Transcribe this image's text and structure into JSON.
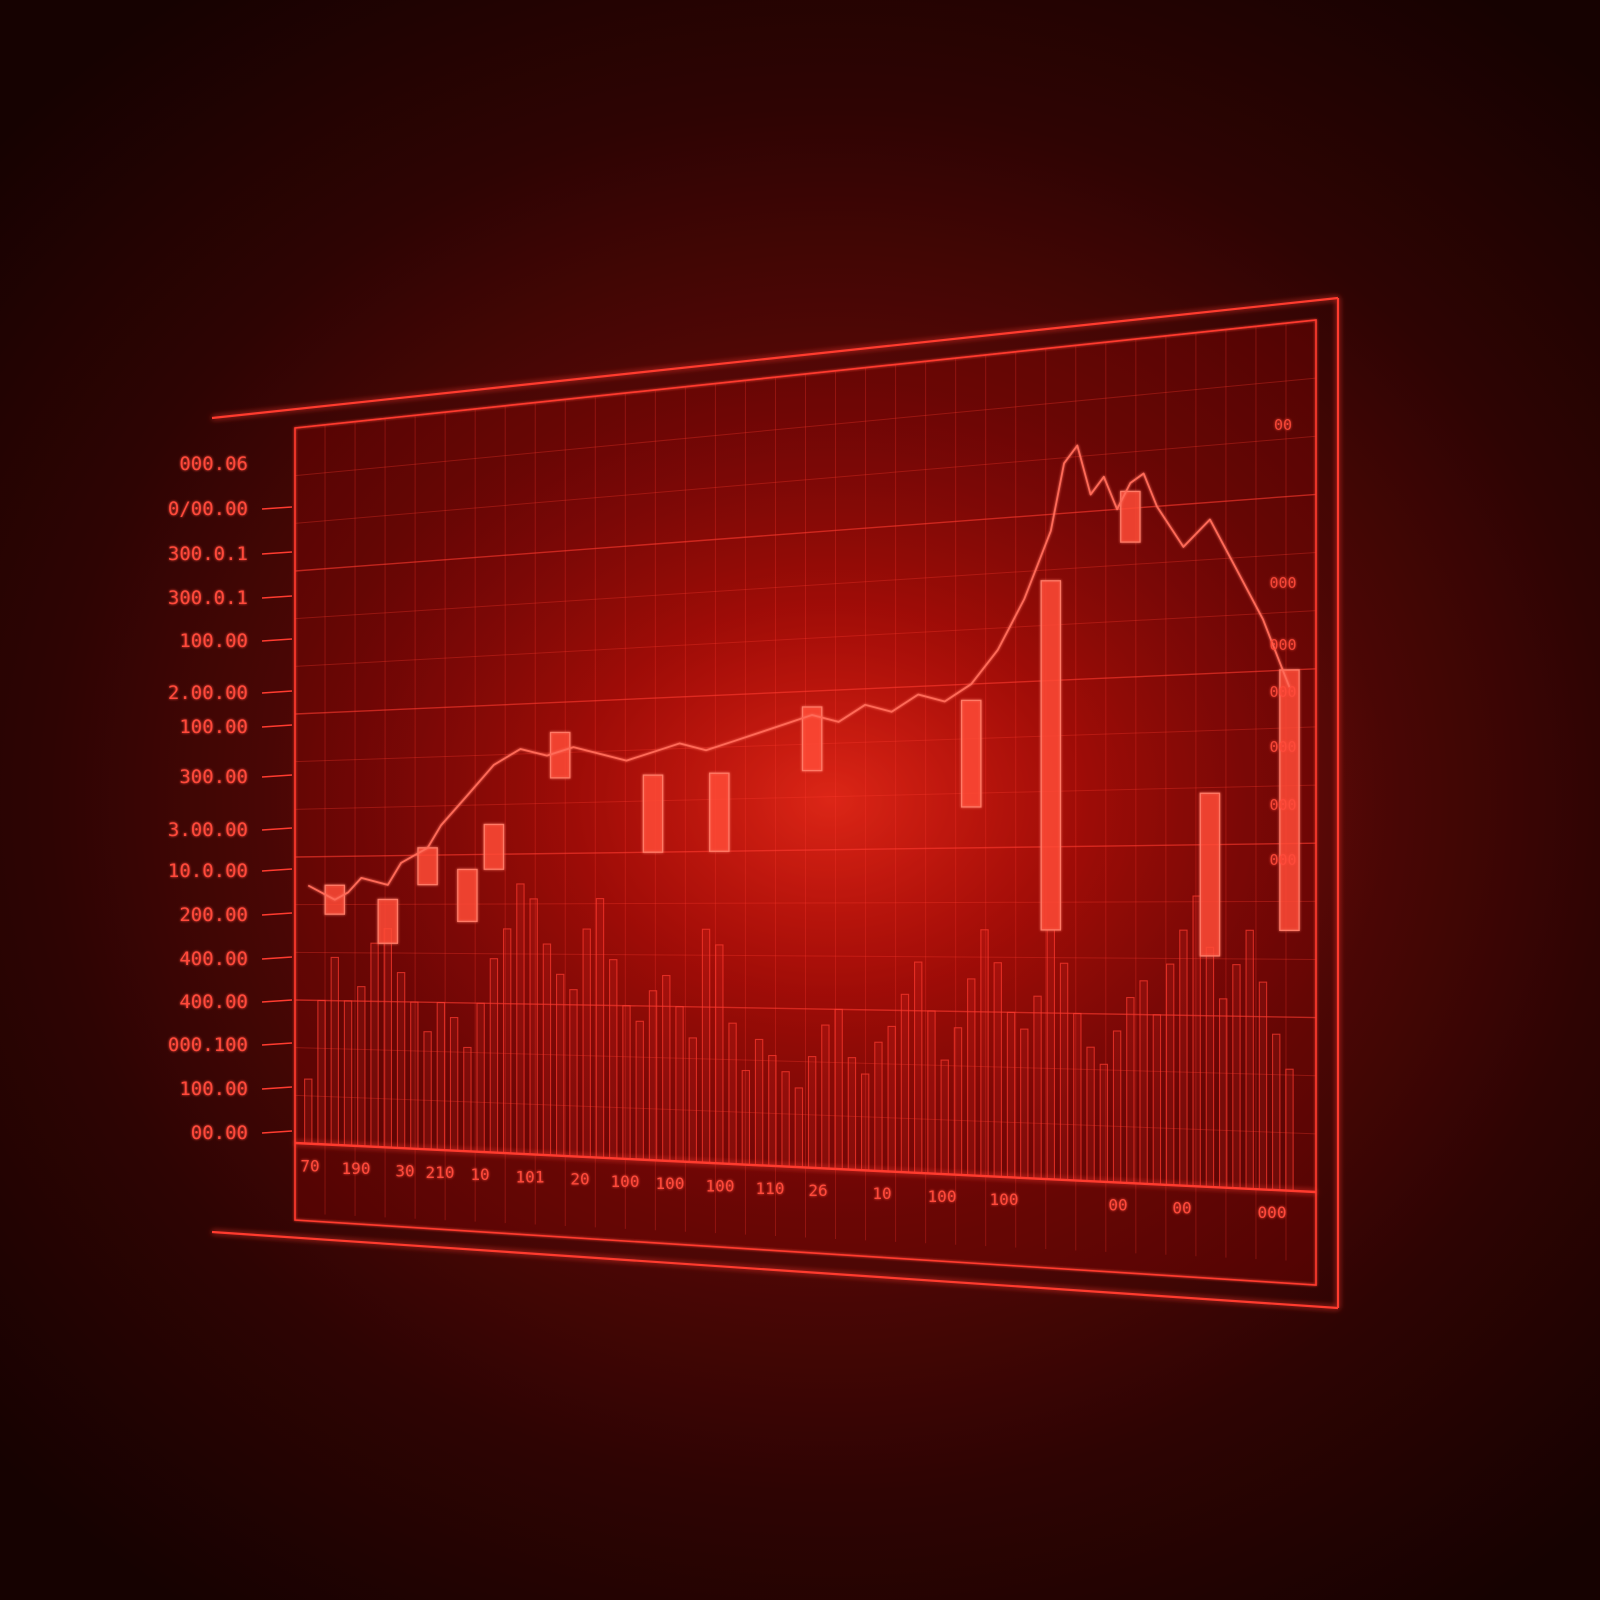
{
  "colors": {
    "background": "#2e0403",
    "accent": "#ff3b2f",
    "glow": "#ff2a1c",
    "text": "#ff4a3a"
  },
  "chart_data": {
    "type": "bar",
    "title": "",
    "xlabel": "",
    "ylabel": "",
    "grid": true,
    "y_tick_labels": [
      "000.06",
      "0/00.00",
      "300.0.1",
      "300.0.1",
      "100.00",
      "2.00.00",
      "100.00",
      "300.00",
      "3.00.00",
      "10.0.00",
      "200.00",
      "400.00",
      "400.00",
      "000.100",
      "100.00",
      "00.00"
    ],
    "x_tick_labels": [
      "70",
      "190",
      "30",
      "210",
      "10",
      "101",
      "20",
      "100",
      "100",
      "100",
      "110",
      "26",
      "10",
      "100",
      "100",
      "00",
      "00",
      "000"
    ],
    "right_labels": [
      "00",
      "000",
      "000",
      "000",
      "000",
      "000",
      "000"
    ],
    "candlesticks": [
      {
        "x": 2,
        "open": 32,
        "close": 36,
        "high": 38,
        "low": 30
      },
      {
        "x": 6,
        "open": 28,
        "close": 34,
        "high": 38,
        "low": 26
      },
      {
        "x": 9,
        "open": 36,
        "close": 41,
        "high": 44,
        "low": 34
      },
      {
        "x": 12,
        "open": 31,
        "close": 38,
        "high": 40,
        "low": 29
      },
      {
        "x": 14,
        "open": 38,
        "close": 44,
        "high": 46,
        "low": 36
      },
      {
        "x": 19,
        "open": 50,
        "close": 56,
        "high": 58,
        "low": 48
      },
      {
        "x": 26,
        "open": 40,
        "close": 50,
        "high": 52,
        "low": 36
      },
      {
        "x": 31,
        "open": 40,
        "close": 50,
        "high": 51,
        "low": 38
      },
      {
        "x": 38,
        "open": 50,
        "close": 58,
        "high": 61,
        "low": 49
      },
      {
        "x": 50,
        "open": 45,
        "close": 58,
        "high": 61,
        "low": 42
      },
      {
        "x": 56,
        "open": 30,
        "close": 72,
        "high": 91,
        "low": 28
      },
      {
        "x": 62,
        "open": 76,
        "close": 82,
        "high": 84,
        "low": 74
      },
      {
        "x": 68,
        "open": 27,
        "close": 46,
        "high": 50,
        "low": 25
      },
      {
        "x": 74,
        "open": 30,
        "close": 60,
        "high": 62,
        "low": 28
      }
    ],
    "price_line": {
      "x": [
        0,
        2,
        3,
        4,
        6,
        7,
        9,
        10,
        12,
        14,
        16,
        18,
        20,
        22,
        24,
        26,
        28,
        30,
        32,
        34,
        36,
        38,
        40,
        42,
        44,
        46,
        48,
        50,
        51,
        52,
        53,
        54,
        55,
        56,
        57,
        58,
        59,
        60,
        61,
        62,
        63,
        64,
        66,
        68,
        70,
        72,
        74
      ],
      "y": [
        36,
        34,
        35,
        37,
        36,
        39,
        41,
        44,
        48,
        52,
        54,
        53,
        54,
        53,
        52,
        53,
        54,
        53,
        54,
        55,
        56,
        57,
        56,
        58,
        57,
        59,
        58,
        60,
        62,
        64,
        67,
        70,
        74,
        78,
        86,
        88,
        82,
        84,
        80,
        83,
        84,
        80,
        75,
        78,
        72,
        66,
        58
      ]
    },
    "volume": {
      "x": [
        0,
        1,
        2,
        3,
        4,
        5,
        6,
        7,
        8,
        9,
        10,
        11,
        12,
        13,
        14,
        15,
        16,
        17,
        18,
        19,
        20,
        21,
        22,
        23,
        24,
        25,
        26,
        27,
        28,
        29,
        30,
        31,
        32,
        33,
        34,
        35,
        36,
        37,
        38,
        39,
        40,
        41,
        42,
        43,
        44,
        45,
        46,
        47,
        48,
        49,
        50,
        51,
        52,
        53,
        54,
        55,
        56,
        57,
        58,
        59,
        60,
        61,
        62,
        63,
        64,
        65,
        66,
        67,
        68,
        69,
        70,
        71,
        72,
        73,
        74
      ],
      "values": [
        9,
        20,
        26,
        20,
        22,
        28,
        30,
        24,
        20,
        16,
        20,
        18,
        14,
        20,
        26,
        30,
        36,
        34,
        28,
        24,
        22,
        30,
        34,
        26,
        20,
        18,
        22,
        24,
        20,
        16,
        30,
        28,
        18,
        12,
        16,
        14,
        12,
        10,
        14,
        18,
        20,
        14,
        12,
        16,
        18,
        22,
        26,
        20,
        14,
        18,
        24,
        30,
        26,
        20,
        18,
        22,
        30,
        26,
        20,
        16,
        14,
        18,
        22,
        24,
        20,
        26,
        30,
        34,
        28,
        22,
        26,
        30,
        24,
        18,
        14
      ]
    },
    "ylim": [
      0,
      100
    ],
    "xlim": [
      -1,
      76
    ]
  }
}
